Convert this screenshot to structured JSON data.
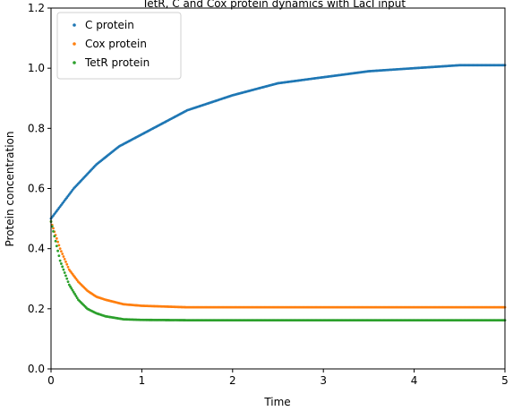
{
  "chart_data": {
    "type": "scatter",
    "title": "TetR, C and Cox protein dynamics with LacI input",
    "xlabel": "Time",
    "ylabel": "Protein concentration",
    "xlim": [
      0,
      5
    ],
    "ylim": [
      0,
      1.2
    ],
    "x_ticks": [
      "0",
      "1",
      "2",
      "3",
      "4",
      "5"
    ],
    "y_ticks": [
      "0.0",
      "0.2",
      "0.4",
      "0.6",
      "0.8",
      "1.0",
      "1.2"
    ],
    "legend_position": "top-left",
    "grid": false,
    "series": [
      {
        "name": "C protein",
        "color": "#1f77b4",
        "x": [
          0,
          0.25,
          0.5,
          0.75,
          1,
          1.5,
          2,
          2.5,
          3,
          3.5,
          4,
          4.5,
          5
        ],
        "y": [
          0.5,
          0.6,
          0.68,
          0.74,
          0.78,
          0.86,
          0.91,
          0.95,
          0.97,
          0.99,
          1.0,
          1.01,
          1.01
        ]
      },
      {
        "name": "Cox protein",
        "color": "#ff7f0e",
        "x": [
          0,
          0.1,
          0.2,
          0.3,
          0.4,
          0.5,
          0.6,
          0.8,
          1,
          1.5,
          2,
          3,
          4,
          5
        ],
        "y": [
          0.49,
          0.4,
          0.33,
          0.29,
          0.26,
          0.24,
          0.23,
          0.215,
          0.21,
          0.205,
          0.205,
          0.205,
          0.205,
          0.205
        ]
      },
      {
        "name": "TetR protein",
        "color": "#2ca02c",
        "x": [
          0,
          0.1,
          0.2,
          0.3,
          0.4,
          0.5,
          0.6,
          0.8,
          1,
          1.5,
          2,
          3,
          4,
          5
        ],
        "y": [
          0.49,
          0.36,
          0.28,
          0.23,
          0.2,
          0.185,
          0.175,
          0.165,
          0.163,
          0.162,
          0.162,
          0.162,
          0.162,
          0.162
        ]
      }
    ]
  }
}
